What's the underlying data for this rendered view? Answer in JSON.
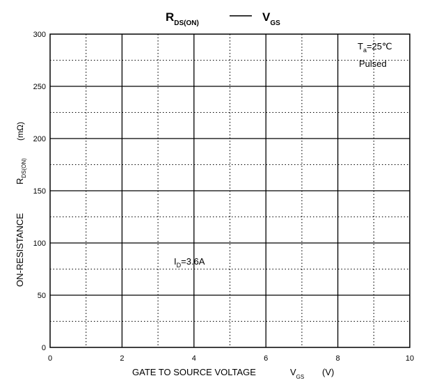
{
  "chart_data": {
    "type": "line",
    "title": {
      "main": "R",
      "main_sub": "DS(ON)",
      "separator": "——",
      "right": "V",
      "right_sub": "GS"
    },
    "xlabel": {
      "text": "GATE TO SOURCE VOLTAGE",
      "symbol": "V",
      "symbol_sub": "GS",
      "unit": "(V)"
    },
    "ylabel": {
      "text": "ON-RESISTANCE",
      "symbol": "R",
      "symbol_sub": "DS(ON)",
      "unit": "(mΩ)"
    },
    "xlim": [
      0,
      10
    ],
    "ylim": [
      0,
      300
    ],
    "x_major_ticks": [
      0,
      2,
      4,
      6,
      8,
      10
    ],
    "x_minor_gridlines": [
      1,
      3,
      5,
      7,
      9
    ],
    "y_major_ticks": [
      0,
      50,
      100,
      150,
      200,
      250,
      300
    ],
    "y_minor_gridlines": [
      25,
      75,
      125,
      175,
      225,
      275
    ],
    "grid": true,
    "series": [],
    "annotations": {
      "conditions": {
        "t_main": "T",
        "t_sub": "a",
        "t_value": "=25℃",
        "line2": "Pulsed"
      },
      "id_label": {
        "main": "I",
        "sub": "D",
        "value": "=3.6A"
      }
    }
  }
}
